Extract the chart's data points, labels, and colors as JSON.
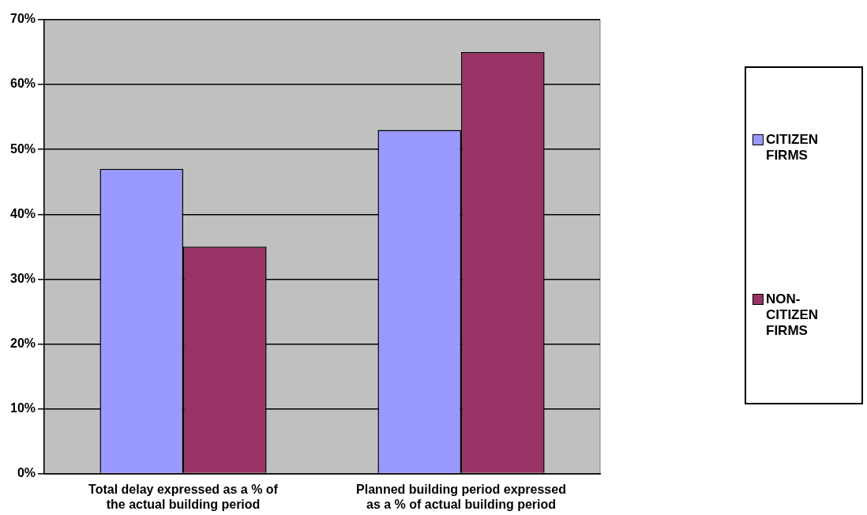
{
  "chart_data": {
    "type": "bar",
    "categories": [
      "Total delay expressed as a % of the actual building period",
      "Planned building period expressed as a % of actual building period"
    ],
    "series": [
      {
        "name": "CITIZEN FIRMS",
        "color": "#9999ff",
        "values": [
          47,
          53
        ]
      },
      {
        "name": "NON-CITIZEN FIRMS",
        "color": "#993366",
        "values": [
          35,
          65
        ]
      }
    ],
    "ylim": [
      0,
      70
    ],
    "yticks": [
      {
        "value": 0,
        "label": "0%"
      },
      {
        "value": 10,
        "label": "10%"
      },
      {
        "value": 20,
        "label": "20%"
      },
      {
        "value": 30,
        "label": "30%"
      },
      {
        "value": 40,
        "label": "40%"
      },
      {
        "value": 50,
        "label": "50%"
      },
      {
        "value": 60,
        "label": "60%"
      },
      {
        "value": 70,
        "label": "70%"
      }
    ],
    "grid": "y",
    "legend": "right"
  }
}
